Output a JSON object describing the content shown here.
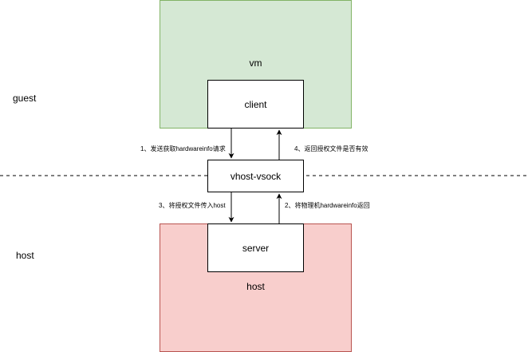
{
  "regions": {
    "vm_label": "vm",
    "host_label": "host"
  },
  "zones": {
    "guest": "guest",
    "host": "host"
  },
  "nodes": {
    "client": "client",
    "vsock": "vhost-vsock",
    "server": "server"
  },
  "edges": {
    "e1": "1、发送获取hardwareinfo请求",
    "e2": "2、将物理机hardwareinfo返回",
    "e3": "3、将授权文件传入host",
    "e4": "4、返回授权文件是否有效"
  },
  "colors": {
    "vm_fill": "#d5e8d4",
    "vm_border": "#82b366",
    "host_fill": "#f8cecc",
    "host_border": "#b85450"
  }
}
